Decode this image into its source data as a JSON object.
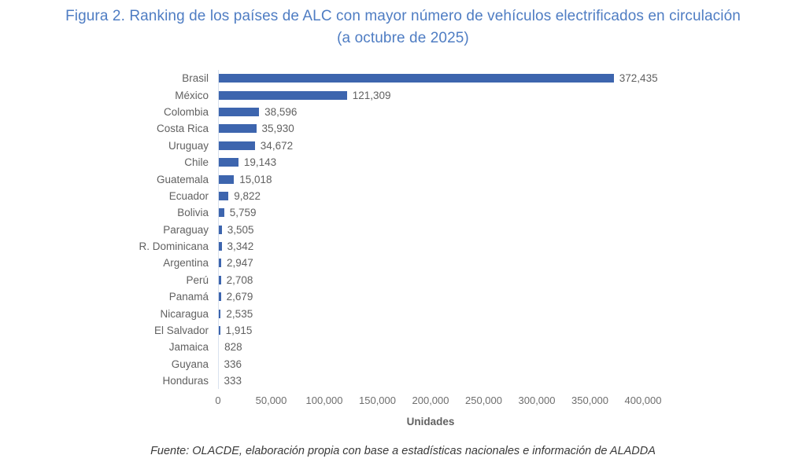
{
  "figure": {
    "title_line1": "Figura 2. Ranking de los países de ALC con mayor número de vehículos electrificados en circulación",
    "title_line2": "(a octubre de 2025)",
    "source": "Fuente: OLACDE, elaboración propia con base a estadísticas nacionales e información de ALADDA"
  },
  "colors": {
    "bar_blue": "#3D65AE",
    "title_blue": "#4F7DC3",
    "label_gray": "#616161",
    "axis_line": "#D9E2EF",
    "source_dark": "#3A3A3A"
  },
  "chart_data": {
    "type": "bar",
    "orientation": "horizontal",
    "title": "Figura 2. Ranking de los países de ALC con mayor número de vehículos electrificados en circulación (a octubre de 2025)",
    "categories": [
      "Brasil",
      "México",
      "Colombia",
      "Costa Rica",
      "Uruguay",
      "Chile",
      "Guatemala",
      "Ecuador",
      "Bolivia",
      "Paraguay",
      "R. Dominicana",
      "Argentina",
      "Perú",
      "Panamá",
      "Nicaragua",
      "El Salvador",
      "Jamaica",
      "Guyana",
      "Honduras"
    ],
    "values": [
      372435,
      121309,
      38596,
      35930,
      34672,
      19143,
      15018,
      9822,
      5759,
      3505,
      3342,
      2947,
      2708,
      2679,
      2535,
      1915,
      828,
      336,
      333
    ],
    "value_labels": [
      "372,435",
      "121,309",
      "38,596",
      "35,930",
      "34,672",
      "19,143",
      "15,018",
      "9,822",
      "5,759",
      "3,505",
      "3,342",
      "2,947",
      "2,708",
      "2,679",
      "2,535",
      "1,915",
      "828",
      "336",
      "333"
    ],
    "xlabel": "Unidades",
    "ylabel": "",
    "xlim": [
      0,
      400000
    ],
    "x_ticks": [
      0,
      50000,
      100000,
      150000,
      200000,
      250000,
      300000,
      350000,
      400000
    ],
    "x_tick_labels": [
      "0",
      "50,000",
      "100,000",
      "150,000",
      "200,000",
      "250,000",
      "300,000",
      "350,000",
      "400,000"
    ],
    "grid": false,
    "legend": false,
    "data_labels": true
  }
}
